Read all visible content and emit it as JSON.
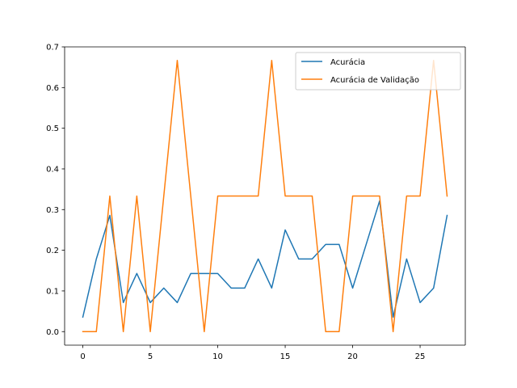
{
  "chart_data": {
    "type": "line",
    "title": "",
    "xlabel": "",
    "ylabel": "",
    "xlim": [
      -1.35,
      28.35
    ],
    "ylim": [
      -0.0333,
      0.7
    ],
    "x": [
      0,
      1,
      2,
      3,
      4,
      5,
      6,
      7,
      8,
      9,
      10,
      11,
      12,
      13,
      14,
      15,
      16,
      17,
      18,
      19,
      20,
      21,
      22,
      23,
      24,
      25,
      26,
      27
    ],
    "xticks": [
      0,
      5,
      10,
      15,
      20,
      25
    ],
    "xtick_labels": [
      "0",
      "5",
      "10",
      "15",
      "20",
      "25"
    ],
    "yticks": [
      0.0,
      0.1,
      0.2,
      0.3,
      0.4,
      0.5,
      0.6,
      0.7
    ],
    "ytick_labels": [
      "0.0",
      "0.1",
      "0.2",
      "0.3",
      "0.4",
      "0.5",
      "0.6",
      "0.7"
    ],
    "grid": false,
    "legend_position": "top-right",
    "series": [
      {
        "name": "Acurácia",
        "color": "#1f77b4",
        "values": [
          0.0357,
          0.1786,
          0.2857,
          0.0714,
          0.1429,
          0.0714,
          0.1071,
          0.0714,
          0.1429,
          0.1429,
          0.1429,
          0.1071,
          0.1071,
          0.1786,
          0.1071,
          0.25,
          0.1786,
          0.1786,
          0.2143,
          0.2143,
          0.1071,
          0.2143,
          0.3214,
          0.0357,
          0.1786,
          0.0714,
          0.1071,
          0.2857
        ]
      },
      {
        "name": "Acurácia de Validação",
        "color": "#ff7f0e",
        "values": [
          0.0,
          0.0,
          0.3333,
          0.0,
          0.3333,
          0.0,
          0.3333,
          0.6667,
          0.3333,
          0.0,
          0.3333,
          0.3333,
          0.3333,
          0.3333,
          0.6667,
          0.3333,
          0.3333,
          0.3333,
          0.0,
          0.0,
          0.3333,
          0.3333,
          0.3333,
          0.0,
          0.3333,
          0.3333,
          0.6667,
          0.3333
        ]
      }
    ]
  }
}
